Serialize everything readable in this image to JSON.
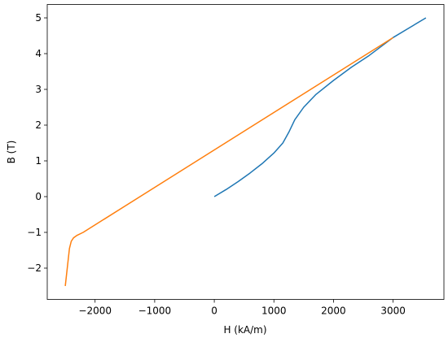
{
  "chart_data": {
    "type": "line",
    "xlabel": "H (kA/m)",
    "ylabel": "B (T)",
    "series": [
      {
        "color": "#1f77b4",
        "x": [
          0,
          200,
          400,
          600,
          800,
          1000,
          1150,
          1250,
          1350,
          1500,
          1700,
          2000,
          2300,
          2600,
          3000,
          3300,
          3550
        ],
        "values": [
          0,
          0.2,
          0.42,
          0.66,
          0.92,
          1.22,
          1.5,
          1.8,
          2.15,
          2.5,
          2.85,
          3.25,
          3.62,
          3.95,
          4.45,
          4.75,
          5
        ]
      },
      {
        "color": "#ff7f0e",
        "x": [
          -2500,
          -2460,
          -2430,
          -2400,
          -2360,
          -2300,
          -2200,
          3000
        ],
        "values": [
          -2.5,
          -1.9,
          -1.45,
          -1.25,
          -1.15,
          -1.08,
          -1.0,
          4.45
        ]
      }
    ],
    "xlim": [
      -2802.5,
      3852.5
    ],
    "xticks": [
      {
        "value": -2000,
        "label": "−2000"
      },
      {
        "value": -1000,
        "label": "−1000"
      },
      0,
      1000,
      2000,
      3000
    ],
    "ylim": [
      -2.875,
      5.375
    ],
    "yticks": [
      {
        "value": -2,
        "label": "−2"
      },
      {
        "value": -1,
        "label": "−1"
      },
      0,
      1,
      2,
      3,
      4,
      5
    ],
    "grid": false
  }
}
